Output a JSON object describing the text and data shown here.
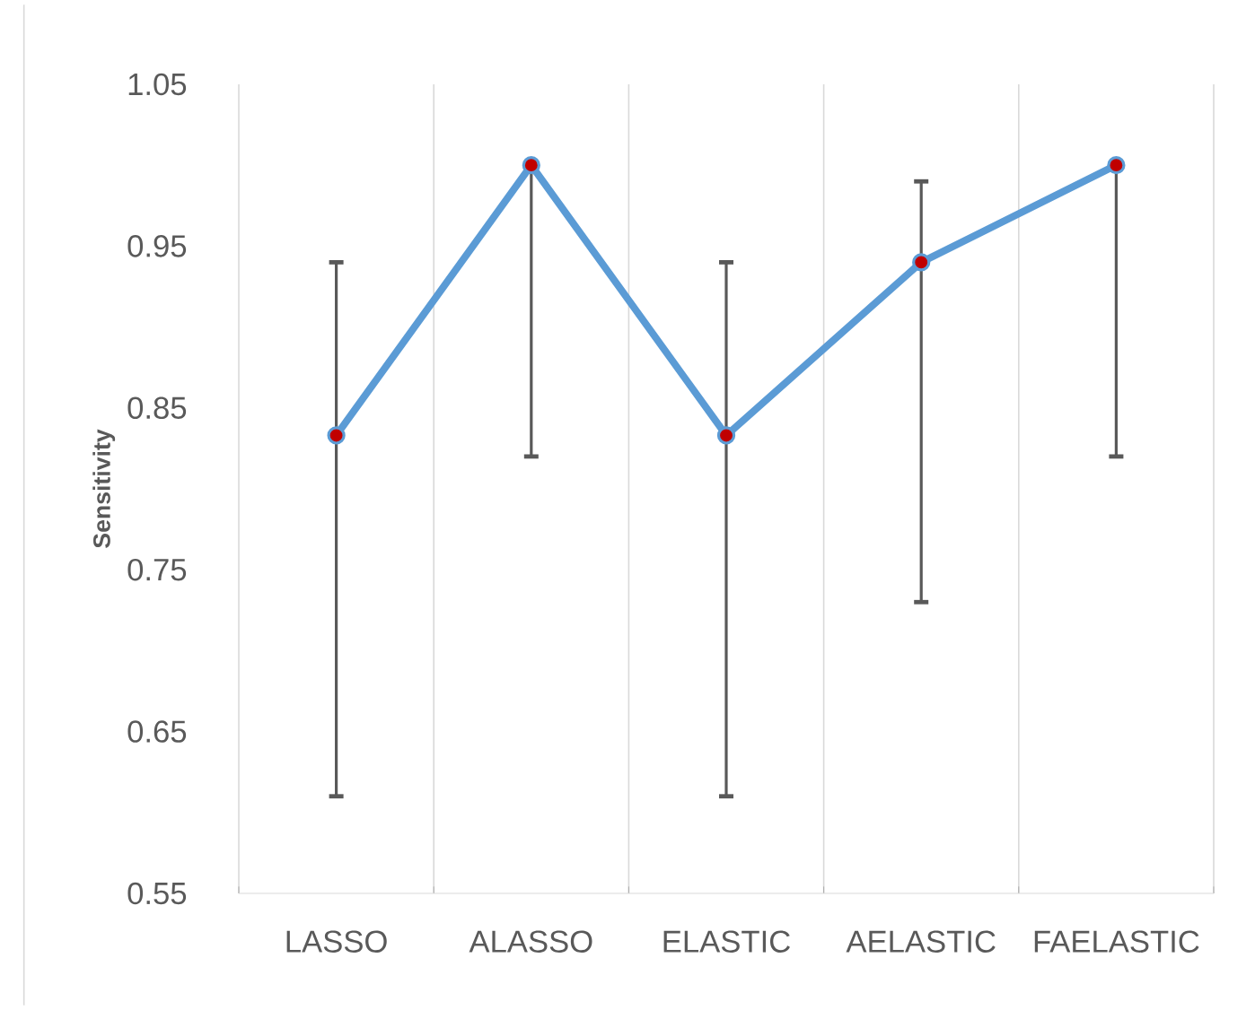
{
  "chart_data": {
    "type": "line",
    "ylabel": "Sensitivity",
    "categories": [
      "LASSO",
      "ALASSO",
      "ELASTIC",
      "AELASTIC",
      "FAELASTIC"
    ],
    "series": [
      {
        "color": "#5b9bd5",
        "values": [
          0.833,
          1.0,
          0.833,
          0.94,
          1.0
        ],
        "errors": [
          [
            0.61,
            0.94
          ],
          [
            0.82,
            1.0
          ],
          [
            0.61,
            0.94
          ],
          [
            0.73,
            0.99
          ],
          [
            0.82,
            1.0
          ]
        ]
      }
    ],
    "ylim": [
      0.55,
      1.05
    ],
    "yticks": [
      {
        "value": 0.55,
        "label": "0.55"
      },
      {
        "value": 0.65,
        "label": "0.65"
      },
      {
        "value": 0.75,
        "label": "0.75"
      },
      {
        "value": 0.85,
        "label": "0.85"
      },
      {
        "value": 0.95,
        "label": "0.95"
      },
      {
        "value": 1.05,
        "label": "1.05"
      }
    ],
    "grid": "x",
    "marker": "circle",
    "line_style": "solid"
  }
}
